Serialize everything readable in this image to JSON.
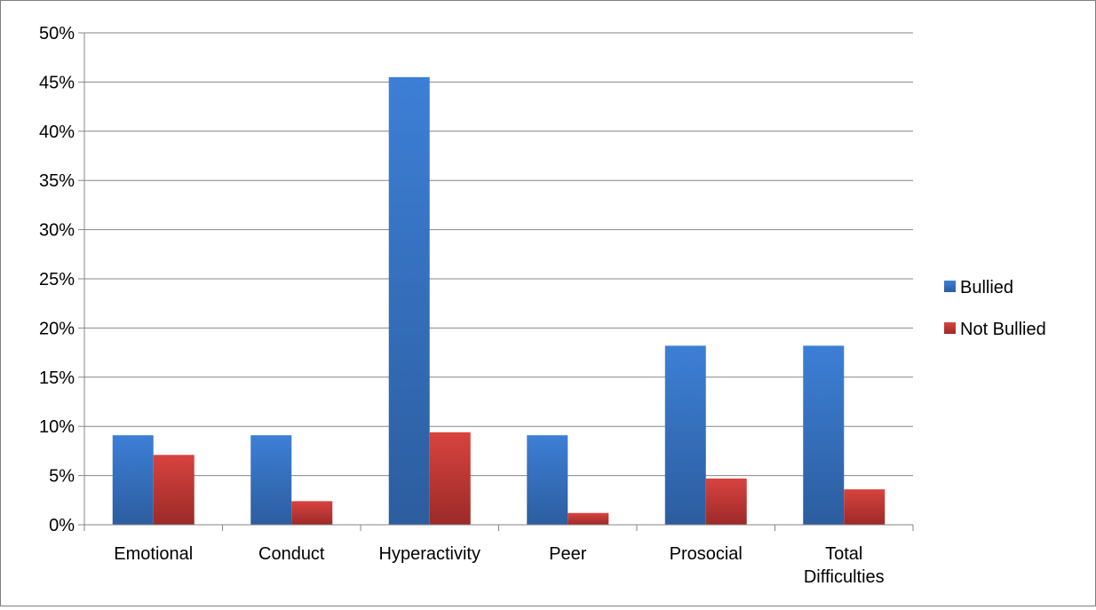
{
  "chart_data": {
    "type": "bar",
    "categories": [
      "Emotional",
      "Conduct",
      "Hyperactivity",
      "Peer",
      "Prosocial",
      "Total Difficulties"
    ],
    "category_lines": [
      [
        "Emotional"
      ],
      [
        "Conduct"
      ],
      [
        "Hyperactivity"
      ],
      [
        "Peer"
      ],
      [
        "Prosocial"
      ],
      [
        "Total",
        "Difficulties"
      ]
    ],
    "series": [
      {
        "name": "Bullied",
        "values": [
          9.1,
          9.1,
          45.5,
          9.1,
          18.2,
          18.2
        ],
        "color": "#3a74c4"
      },
      {
        "name": "Not Bullied",
        "values": [
          7.1,
          2.4,
          9.4,
          1.2,
          4.7,
          3.6
        ],
        "color": "#c33a38"
      }
    ],
    "y_ticks": [
      "0%",
      "5%",
      "10%",
      "15%",
      "20%",
      "25%",
      "30%",
      "35%",
      "40%",
      "45%",
      "50%"
    ],
    "ylim": [
      0,
      50
    ],
    "y_unit": "%",
    "grid": true,
    "legend": "right",
    "title": "",
    "xlabel": "",
    "ylabel": ""
  }
}
